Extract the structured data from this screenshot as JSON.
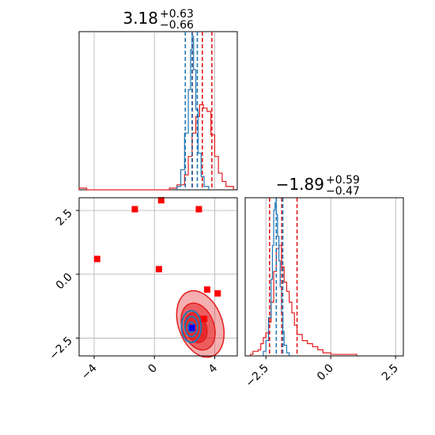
{
  "colors": {
    "red": "#e31a1c",
    "blue": "#1f77b4",
    "marker_red": "#ff0000",
    "marker_blue": "#0000ff",
    "grid": "#b0b0b0"
  },
  "chart_data": [
    {
      "type": "histogram",
      "panel": "top-left",
      "title_value": "3.18",
      "title_plus": "+0.63",
      "title_minus": "−0.66",
      "xlim": [
        -5,
        5.5
      ],
      "series": [
        {
          "name": "",
          "color": "red",
          "bins": [
            -5.0,
            -4.5,
            0.5,
            1.0,
            1.5,
            2.0,
            2.25,
            2.5,
            2.75,
            3.0,
            3.25,
            3.5,
            3.75,
            4.0,
            4.25,
            4.5,
            4.75,
            5.0,
            5.25
          ],
          "counts": [
            0.01,
            0.0,
            0.0,
            0.01,
            0.03,
            0.09,
            0.2,
            0.34,
            0.44,
            0.51,
            0.49,
            0.47,
            0.33,
            0.2,
            0.1,
            0.05,
            0.02,
            0.02
          ]
        },
        {
          "name": "",
          "color": "blue",
          "bins": [
            1.5,
            1.75,
            2.0,
            2.25,
            2.4,
            2.5,
            2.6,
            2.75,
            2.9,
            3.1,
            3.3,
            3.6
          ],
          "counts": [
            0.02,
            0.12,
            0.34,
            0.6,
            0.84,
            0.92,
            0.72,
            0.48,
            0.22,
            0.08,
            0.02
          ]
        }
      ],
      "quantile_lines": [
        {
          "x": 2.52,
          "color": "red"
        },
        {
          "x": 3.18,
          "color": "red"
        },
        {
          "x": 3.81,
          "color": "red"
        },
        {
          "x": 2.05,
          "color": "blue"
        },
        {
          "x": 2.5,
          "color": "blue"
        },
        {
          "x": 2.85,
          "color": "blue"
        }
      ]
    },
    {
      "type": "scatter",
      "panel": "bottom-left",
      "xlim": [
        -5,
        5.5
      ],
      "ylim": [
        -3.2,
        3.0
      ],
      "xticks": [
        -4,
        0,
        4
      ],
      "xtick_labels": [
        "−4",
        "0",
        "4"
      ],
      "yticks": [
        -2.5,
        0.0,
        2.5
      ],
      "ytick_labels": [
        "−2.5",
        "0.0",
        "2.5"
      ],
      "grid": true,
      "red_squares": [
        {
          "x": -1.3,
          "y": 2.55
        },
        {
          "x": 0.45,
          "y": 2.9
        },
        {
          "x": 2.95,
          "y": 2.55
        },
        {
          "x": -3.8,
          "y": 0.6
        },
        {
          "x": 0.3,
          "y": 0.2
        },
        {
          "x": 3.5,
          "y": -0.6
        },
        {
          "x": 4.2,
          "y": -0.75
        },
        {
          "x": 3.3,
          "y": -1.75
        }
      ],
      "blue_squares": [
        {
          "x": 2.5,
          "y": -2.1
        }
      ],
      "red_contours": [
        {
          "cx": 3.05,
          "cy": -1.95,
          "rx": 1.45,
          "ry": 1.35,
          "fill_opacity": 0.35
        },
        {
          "cx": 2.9,
          "cy": -2.05,
          "rx": 1.05,
          "ry": 0.95,
          "fill_opacity": 0.55
        },
        {
          "cx": 2.75,
          "cy": -2.1,
          "rx": 0.7,
          "ry": 0.6,
          "fill_opacity": 0.75
        }
      ],
      "blue_contours": [
        {
          "cx": 2.45,
          "cy": -2.05,
          "rx": 0.65,
          "ry": 0.62
        },
        {
          "cx": 2.45,
          "cy": -2.05,
          "rx": 0.42,
          "ry": 0.4
        },
        {
          "cx": 2.45,
          "cy": -2.08,
          "rx": 0.22,
          "ry": 0.2
        }
      ]
    },
    {
      "type": "histogram",
      "panel": "bottom-right",
      "title_value": "−1.89",
      "title_plus": "+0.59",
      "title_minus": "−0.47",
      "xlim": [
        -3.3,
        2.8
      ],
      "xticks": [
        -2.5,
        0.0,
        2.5
      ],
      "xtick_labels": [
        "−2.5",
        "0.0",
        "2.5"
      ],
      "series": [
        {
          "name": "",
          "color": "red",
          "bins": [
            -3.1,
            -3.0,
            -2.8,
            -2.7,
            -2.6,
            -2.5,
            -2.4,
            -2.3,
            -2.2,
            -2.1,
            -2.0,
            -1.9,
            -1.8,
            -1.7,
            -1.6,
            -1.5,
            -1.4,
            -1.3,
            -1.1,
            -0.9,
            -0.7,
            -0.5,
            -0.3,
            0.0,
            0.5,
            1.0
          ],
          "counts": [
            0.01,
            0.03,
            0.04,
            0.08,
            0.12,
            0.15,
            0.22,
            0.35,
            0.55,
            0.7,
            0.72,
            0.58,
            0.48,
            0.42,
            0.35,
            0.28,
            0.2,
            0.14,
            0.1,
            0.08,
            0.06,
            0.04,
            0.02,
            0.01,
            0.01
          ]
        },
        {
          "name": "",
          "color": "blue",
          "bins": [
            -2.6,
            -2.5,
            -2.4,
            -2.3,
            -2.25,
            -2.2,
            -2.15,
            -2.1,
            -2.05,
            -2.0,
            -1.95,
            -1.9,
            -1.85,
            -1.8,
            -1.7,
            -1.6
          ],
          "counts": [
            0.03,
            0.1,
            0.25,
            0.5,
            0.72,
            0.95,
            1.0,
            0.92,
            0.78,
            0.62,
            0.45,
            0.28,
            0.16,
            0.07,
            0.02
          ]
        }
      ],
      "quantile_lines": [
        {
          "x": -2.36,
          "color": "red"
        },
        {
          "x": -1.89,
          "color": "red"
        },
        {
          "x": -1.3,
          "color": "red"
        },
        {
          "x": -2.1,
          "color": "blue"
        },
        {
          "x": -1.85,
          "color": "blue"
        }
      ]
    }
  ]
}
